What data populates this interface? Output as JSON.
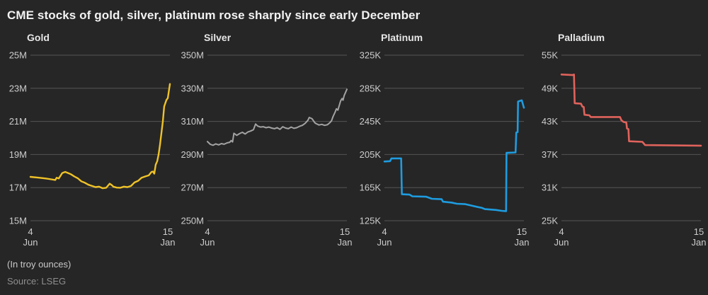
{
  "header": {
    "title": "CME stocks of gold, silver, platinum rose sharply since early December"
  },
  "footer": {
    "note": "(In troy ounces)",
    "source": "Source: LSEG"
  },
  "colors": {
    "background": "#262626",
    "gridline": "#555555",
    "tick_label": "#cccccc",
    "panel_title": "#e6e6e6",
    "main_title": "#f2f2f2",
    "gold": "#efc228",
    "silver": "#a3a3a3",
    "platinum": "#1e9ce0",
    "palladium": "#e0635c"
  },
  "chart_data": [
    {
      "type": "line",
      "title": "Gold",
      "color": "#efc228",
      "stroke_width": 2.4,
      "unit": "troy ounces",
      "ylim": [
        15,
        25
      ],
      "grid": true,
      "legend": "none",
      "y_ticks": [
        [
          "25M",
          25
        ],
        [
          "23M",
          23
        ],
        [
          "21M",
          21
        ],
        [
          "19M",
          19
        ],
        [
          "17M",
          17
        ],
        [
          "15M",
          15
        ]
      ],
      "x_ticks": [
        {
          "lines": [
            "4",
            "Jun"
          ],
          "pos": 0
        },
        {
          "lines": [
            "15",
            "Jan"
          ],
          "pos": 1
        }
      ],
      "points": [
        [
          0,
          17.65
        ],
        [
          0.06,
          17.6
        ],
        [
          0.11,
          17.55
        ],
        [
          0.15,
          17.5
        ],
        [
          0.178,
          17.46
        ],
        [
          0.188,
          17.6
        ],
        [
          0.203,
          17.55
        ],
        [
          0.228,
          17.88
        ],
        [
          0.249,
          17.95
        ],
        [
          0.264,
          17.9
        ],
        [
          0.289,
          17.81
        ],
        [
          0.315,
          17.67
        ],
        [
          0.34,
          17.56
        ],
        [
          0.365,
          17.38
        ],
        [
          0.391,
          17.29
        ],
        [
          0.416,
          17.17
        ],
        [
          0.442,
          17.1
        ],
        [
          0.467,
          17.03
        ],
        [
          0.492,
          17.06
        ],
        [
          0.518,
          16.96
        ],
        [
          0.543,
          16.99
        ],
        [
          0.568,
          17.24
        ],
        [
          0.584,
          17.15
        ],
        [
          0.594,
          17.06
        ],
        [
          0.619,
          17.0
        ],
        [
          0.645,
          16.99
        ],
        [
          0.67,
          17.06
        ],
        [
          0.695,
          17.03
        ],
        [
          0.721,
          17.1
        ],
        [
          0.746,
          17.31
        ],
        [
          0.772,
          17.41
        ],
        [
          0.797,
          17.6
        ],
        [
          0.822,
          17.67
        ],
        [
          0.848,
          17.74
        ],
        [
          0.868,
          17.95
        ],
        [
          0.878,
          17.97
        ],
        [
          0.888,
          17.84
        ],
        [
          0.898,
          18.38
        ],
        [
          0.909,
          18.6
        ],
        [
          0.919,
          19.0
        ],
        [
          0.929,
          19.6
        ],
        [
          0.939,
          20.3
        ],
        [
          0.949,
          21.0
        ],
        [
          0.959,
          21.9
        ],
        [
          0.975,
          22.3
        ],
        [
          0.985,
          22.4
        ],
        [
          1,
          23.26
        ]
      ]
    },
    {
      "type": "line",
      "title": "Silver",
      "color": "#a3a3a3",
      "stroke_width": 2.0,
      "unit": "troy ounces",
      "ylim": [
        250,
        350
      ],
      "grid": true,
      "legend": "none",
      "y_ticks": [
        [
          "350M",
          350
        ],
        [
          "330M",
          330
        ],
        [
          "310M",
          310
        ],
        [
          "290M",
          290
        ],
        [
          "270M",
          270
        ],
        [
          "250M",
          250
        ]
      ],
      "x_ticks": [
        {
          "lines": [
            "4",
            "Jun"
          ],
          "pos": 0
        },
        {
          "lines": [
            "15",
            "Jan"
          ],
          "pos": 1
        }
      ],
      "points": [
        [
          0,
          297.8
        ],
        [
          0.02,
          296.2
        ],
        [
          0.04,
          295.6
        ],
        [
          0.06,
          296.4
        ],
        [
          0.08,
          295.8
        ],
        [
          0.1,
          296.6
        ],
        [
          0.12,
          296.2
        ],
        [
          0.14,
          297.0
        ],
        [
          0.16,
          297.4
        ],
        [
          0.17,
          298.4
        ],
        [
          0.18,
          297.6
        ],
        [
          0.19,
          302.8
        ],
        [
          0.21,
          301.6
        ],
        [
          0.23,
          302.6
        ],
        [
          0.25,
          303.4
        ],
        [
          0.27,
          302.4
        ],
        [
          0.29,
          303.6
        ],
        [
          0.31,
          304.2
        ],
        [
          0.33,
          305.0
        ],
        [
          0.345,
          308.4
        ],
        [
          0.36,
          307.2
        ],
        [
          0.38,
          306.6
        ],
        [
          0.4,
          306.8
        ],
        [
          0.42,
          306.2
        ],
        [
          0.44,
          306.6
        ],
        [
          0.46,
          306.0
        ],
        [
          0.48,
          305.6
        ],
        [
          0.5,
          306.2
        ],
        [
          0.52,
          305.2
        ],
        [
          0.54,
          306.8
        ],
        [
          0.56,
          306.0
        ],
        [
          0.58,
          305.6
        ],
        [
          0.6,
          306.6
        ],
        [
          0.62,
          305.8
        ],
        [
          0.64,
          306.2
        ],
        [
          0.66,
          307.0
        ],
        [
          0.68,
          307.6
        ],
        [
          0.7,
          308.8
        ],
        [
          0.72,
          310.6
        ],
        [
          0.73,
          312.4
        ],
        [
          0.75,
          311.6
        ],
        [
          0.77,
          309.2
        ],
        [
          0.78,
          308.6
        ],
        [
          0.8,
          307.8
        ],
        [
          0.82,
          308.2
        ],
        [
          0.84,
          307.6
        ],
        [
          0.86,
          308.0
        ],
        [
          0.875,
          309.0
        ],
        [
          0.89,
          310.4
        ],
        [
          0.9,
          312.8
        ],
        [
          0.915,
          315.6
        ],
        [
          0.925,
          317.6
        ],
        [
          0.935,
          316.8
        ],
        [
          0.945,
          319.6
        ],
        [
          0.955,
          322.4
        ],
        [
          0.965,
          323.8
        ],
        [
          0.972,
          322.8
        ],
        [
          0.98,
          325.6
        ],
        [
          1,
          329.4
        ]
      ]
    },
    {
      "type": "line",
      "title": "Platinum",
      "color": "#1e9ce0",
      "stroke_width": 2.6,
      "unit": "troy ounces",
      "ylim": [
        125,
        325
      ],
      "grid": true,
      "legend": "none",
      "y_ticks": [
        [
          "325K",
          325
        ],
        [
          "285K",
          285
        ],
        [
          "245K",
          245
        ],
        [
          "205K",
          205
        ],
        [
          "165K",
          165
        ],
        [
          "125K",
          125
        ]
      ],
      "x_ticks": [
        {
          "lines": [
            "4",
            "Jun"
          ],
          "pos": 0
        },
        {
          "lines": [
            "15",
            "Jan"
          ],
          "pos": 1
        }
      ],
      "points": [
        [
          0,
          196.5
        ],
        [
          0.04,
          197.0
        ],
        [
          0.05,
          200.3
        ],
        [
          0.12,
          200.3
        ],
        [
          0.125,
          157.0
        ],
        [
          0.18,
          156.5
        ],
        [
          0.2,
          154.5
        ],
        [
          0.3,
          154.0
        ],
        [
          0.34,
          151.5
        ],
        [
          0.41,
          151.0
        ],
        [
          0.42,
          148.0
        ],
        [
          0.48,
          147.0
        ],
        [
          0.52,
          145.5
        ],
        [
          0.58,
          145.0
        ],
        [
          0.63,
          143.0
        ],
        [
          0.67,
          141.5
        ],
        [
          0.7,
          140.5
        ],
        [
          0.72,
          139.0
        ],
        [
          0.76,
          138.5
        ],
        [
          0.8,
          138.0
        ],
        [
          0.84,
          137.0
        ],
        [
          0.872,
          136.5
        ],
        [
          0.875,
          207.0
        ],
        [
          0.94,
          207.5
        ],
        [
          0.945,
          231.5
        ],
        [
          0.955,
          232.0
        ],
        [
          0.958,
          269.0
        ],
        [
          0.985,
          270.5
        ],
        [
          1,
          261.5
        ]
      ]
    },
    {
      "type": "line",
      "title": "Palladium",
      "color": "#e0635c",
      "stroke_width": 2.6,
      "unit": "troy ounces",
      "ylim": [
        25,
        55
      ],
      "grid": true,
      "legend": "none",
      "y_ticks": [
        [
          "55K",
          55
        ],
        [
          "49K",
          49
        ],
        [
          "43K",
          43
        ],
        [
          "37K",
          37
        ],
        [
          "31K",
          31
        ],
        [
          "25K",
          25
        ]
      ],
      "x_ticks": [
        {
          "lines": [
            "4",
            "Jun"
          ],
          "pos": 0
        },
        {
          "lines": [
            "15",
            "Jan"
          ],
          "pos": 1
        }
      ],
      "points": [
        [
          0,
          51.5
        ],
        [
          0.08,
          51.4
        ],
        [
          0.09,
          51.5
        ],
        [
          0.095,
          46.3
        ],
        [
          0.14,
          46.2
        ],
        [
          0.15,
          45.7
        ],
        [
          0.16,
          45.6
        ],
        [
          0.165,
          44.2
        ],
        [
          0.2,
          44.1
        ],
        [
          0.21,
          43.8
        ],
        [
          0.42,
          43.8
        ],
        [
          0.43,
          43.2
        ],
        [
          0.445,
          42.9
        ],
        [
          0.465,
          42.8
        ],
        [
          0.47,
          41.7
        ],
        [
          0.48,
          41.6
        ],
        [
          0.485,
          39.4
        ],
        [
          0.58,
          39.3
        ],
        [
          0.6,
          38.7
        ],
        [
          1,
          38.6
        ]
      ]
    }
  ]
}
